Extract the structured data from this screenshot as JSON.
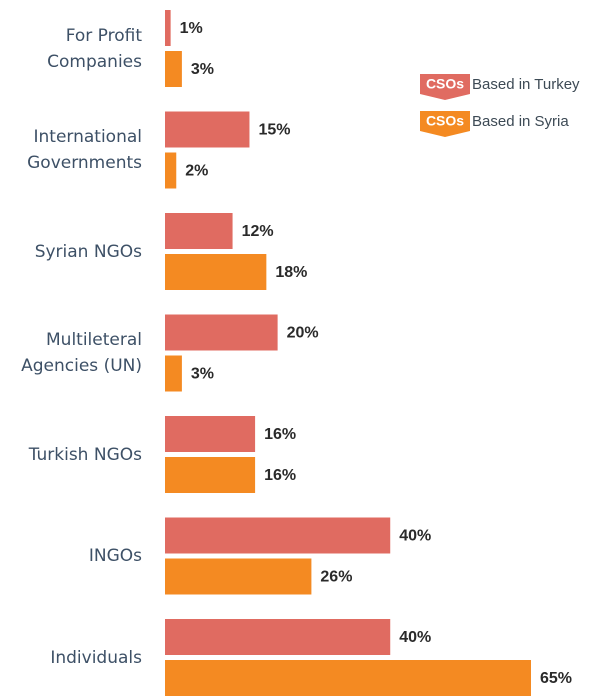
{
  "chart_data": {
    "type": "bar",
    "orientation": "horizontal",
    "categories": [
      "For Profit Companies",
      "International Governments",
      "Syrian NGOs",
      "Multileteral Agencies (UN)",
      "Turkish NGOs",
      "INGOs",
      "Individuals"
    ],
    "legend_badge": "CSOs",
    "series": [
      {
        "name": "Based in Turkey",
        "color": "#e06b61",
        "values": [
          1,
          15,
          12,
          20,
          16,
          40,
          40
        ],
        "value_labels": [
          "1%",
          "15%",
          "12%",
          "20%",
          "16%",
          "40%",
          "40%"
        ]
      },
      {
        "name": "Based in Syria",
        "color": "#f48a22",
        "values": [
          3,
          2,
          18,
          3,
          16,
          26,
          65
        ],
        "value_labels": [
          "3%",
          "2%",
          "18%",
          "3%",
          "16%",
          "26%",
          "65%"
        ]
      }
    ]
  }
}
